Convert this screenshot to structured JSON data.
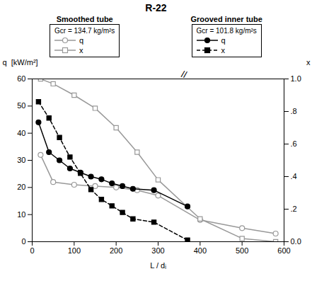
{
  "chart_data": {
    "type": "line",
    "title": "R-22",
    "x_label": "L / dᵢ",
    "y_label": "q  [kW/m²]",
    "y2_label": "x",
    "xlim": [
      0,
      600
    ],
    "xticks": [
      0,
      100,
      200,
      300,
      400,
      500,
      600
    ],
    "ylim": [
      0,
      60
    ],
    "yticks": [
      0,
      10,
      20,
      30,
      40,
      50,
      60
    ],
    "y2lim": [
      0.0,
      1.0
    ],
    "y2ticks": [
      {
        "value": 0.0,
        "label": "0.0"
      },
      {
        "value": 0.2,
        "label": ".2"
      },
      {
        "value": 0.4,
        "label": ".4"
      },
      {
        "value": 0.6,
        "label": ".6"
      },
      {
        "value": 0.8,
        "label": ".8"
      },
      {
        "value": 1.0,
        "label": "1.0"
      }
    ],
    "groups": [
      {
        "name": "Smoothed tube",
        "legend_title": "Gcr = 134.7 kg/m²s"
      },
      {
        "name": "Grooved inner tube",
        "legend_title": "Gcr = 101.8 kg/m²s"
      }
    ],
    "series": [
      {
        "name": "q",
        "group": "Smoothed tube",
        "color": "#999999",
        "marker": "open circle",
        "line_style": "solid",
        "x": [
          20,
          50,
          100,
          150,
          200,
          250,
          300,
          400,
          500,
          580
        ],
        "values": [
          32,
          22,
          21,
          20.5,
          20,
          19,
          17,
          8,
          5,
          3
        ]
      },
      {
        "name": "x",
        "group": "Smoothed tube",
        "color": "#999999",
        "marker": "open square",
        "line_style": "solid",
        "axis": "y2",
        "x": [
          20,
          50,
          100,
          150,
          200,
          250,
          300,
          400,
          500,
          580
        ],
        "values": [
          1.0,
          0.97,
          0.9,
          0.82,
          0.7,
          0.55,
          0.38,
          0.14,
          0.02,
          0.0
        ]
      },
      {
        "name": "q",
        "group": "Grooved inner tube",
        "color": "#000000",
        "marker": "circle",
        "line_style": "solid",
        "x": [
          15,
          40,
          65,
          90,
          115,
          140,
          165,
          190,
          215,
          240,
          290,
          370
        ],
        "values": [
          44,
          33,
          30,
          27,
          25.5,
          24,
          23,
          21.5,
          20.5,
          19.5,
          19,
          13
        ]
      },
      {
        "name": "x",
        "group": "Grooved inner tube",
        "color": "#000000",
        "marker": "square",
        "line_style": "dashed",
        "axis": "y2",
        "x": [
          15,
          40,
          65,
          90,
          115,
          140,
          165,
          190,
          215,
          240,
          290,
          370
        ],
        "values": [
          0.86,
          0.76,
          0.64,
          0.52,
          0.42,
          0.32,
          0.26,
          0.22,
          0.18,
          0.14,
          0.12,
          0.01
        ]
      }
    ],
    "annotations": [
      "//"
    ],
    "grid": false,
    "legend": "top"
  }
}
